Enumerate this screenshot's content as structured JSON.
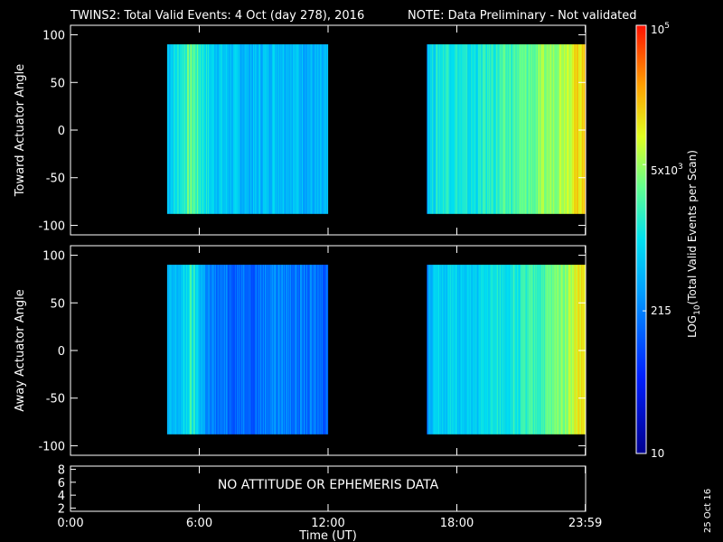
{
  "header": {
    "title": "TWINS2: Total Valid Events:  4 Oct (day 278), 2016",
    "warning": "NOTE: Data Preliminary - Not validated",
    "warning_color": "#ff2020"
  },
  "side_date": "25 Oct 16",
  "no_data_message": "NO ATTITUDE OR EPHEMERIS DATA",
  "chart_data": [
    {
      "type": "heatmap",
      "name": "toward",
      "ylabel": "Toward Actuator Angle",
      "ylim": [
        -110,
        110
      ],
      "y_ticks": [
        100,
        50,
        0,
        -50,
        -100
      ],
      "x_hours_range": [
        0,
        24
      ],
      "data_segments": [
        {
          "start_hour": 4.5,
          "end_hour": 12.0,
          "angle_range": [
            -88,
            90
          ]
        },
        {
          "start_hour": 16.6,
          "end_hour": 24.0,
          "angle_range": [
            -88,
            90
          ]
        }
      ],
      "band_levels": [
        {
          "hour": 4.5,
          "level": 0.45
        },
        {
          "hour": 5.2,
          "level": 0.55
        },
        {
          "hour": 5.6,
          "level": 0.62
        },
        {
          "hour": 6.5,
          "level": 0.48
        },
        {
          "hour": 7.5,
          "level": 0.44
        },
        {
          "hour": 8.5,
          "level": 0.42
        },
        {
          "hour": 9.5,
          "level": 0.46
        },
        {
          "hour": 10.5,
          "level": 0.44
        },
        {
          "hour": 11.5,
          "level": 0.4
        },
        {
          "hour": 16.6,
          "level": 0.48
        },
        {
          "hour": 17.5,
          "level": 0.55
        },
        {
          "hour": 18.5,
          "level": 0.5
        },
        {
          "hour": 19.5,
          "level": 0.55
        },
        {
          "hour": 20.5,
          "level": 0.58
        },
        {
          "hour": 21.5,
          "level": 0.62
        },
        {
          "hour": 22.5,
          "level": 0.68
        },
        {
          "hour": 23.2,
          "level": 0.74
        },
        {
          "hour": 23.8,
          "level": 0.8
        }
      ]
    },
    {
      "type": "heatmap",
      "name": "away",
      "ylabel": "Away Actuator Angle",
      "ylim": [
        -110,
        110
      ],
      "y_ticks": [
        100,
        50,
        0,
        -50,
        -100
      ],
      "x_hours_range": [
        0,
        24
      ],
      "data_segments": [
        {
          "start_hour": 4.5,
          "end_hour": 12.0,
          "angle_range": [
            -88,
            90
          ]
        },
        {
          "start_hour": 16.6,
          "end_hour": 24.0,
          "angle_range": [
            -88,
            90
          ]
        }
      ],
      "band_levels": [
        {
          "hour": 4.5,
          "level": 0.4
        },
        {
          "hour": 5.2,
          "level": 0.45
        },
        {
          "hour": 5.6,
          "level": 0.55
        },
        {
          "hour": 6.5,
          "level": 0.32
        },
        {
          "hour": 7.5,
          "level": 0.3
        },
        {
          "hour": 8.5,
          "level": 0.3
        },
        {
          "hour": 9.5,
          "level": 0.35
        },
        {
          "hour": 10.5,
          "level": 0.32
        },
        {
          "hour": 11.5,
          "level": 0.3
        },
        {
          "hour": 16.6,
          "level": 0.42
        },
        {
          "hour": 17.5,
          "level": 0.48
        },
        {
          "hour": 18.5,
          "level": 0.44
        },
        {
          "hour": 19.5,
          "level": 0.5
        },
        {
          "hour": 20.5,
          "level": 0.52
        },
        {
          "hour": 21.5,
          "level": 0.56
        },
        {
          "hour": 22.5,
          "level": 0.62
        },
        {
          "hour": 23.2,
          "level": 0.7
        },
        {
          "hour": 23.8,
          "level": 0.78
        }
      ]
    },
    {
      "type": "line",
      "name": "ephemeris",
      "y_ticks": [
        8,
        6,
        4,
        2
      ],
      "ylim": [
        1.5,
        8.5
      ]
    }
  ],
  "x_axis": {
    "label": "Time (UT)",
    "ticks": [
      {
        "hour": 0,
        "label": "0:00"
      },
      {
        "hour": 6,
        "label": "6:00"
      },
      {
        "hour": 12,
        "label": "12:00"
      },
      {
        "hour": 18,
        "label": "18:00"
      },
      {
        "hour": 23.983,
        "label": "23:59"
      }
    ]
  },
  "colorbar": {
    "label_prefix": "LOG",
    "label_sub": "10",
    "label_suffix": "(Total Valid Events per Scan)",
    "min_label": "10",
    "ticks": [
      {
        "value": 215,
        "label": "215"
      }
    ],
    "top_label_base": "10",
    "top_label_exp": "5",
    "mid_label_base": "5x10",
    "mid_label_exp": "3",
    "min": 10,
    "max": 100000
  },
  "colors": {
    "axis": "#ffffff",
    "background": "#000000"
  }
}
